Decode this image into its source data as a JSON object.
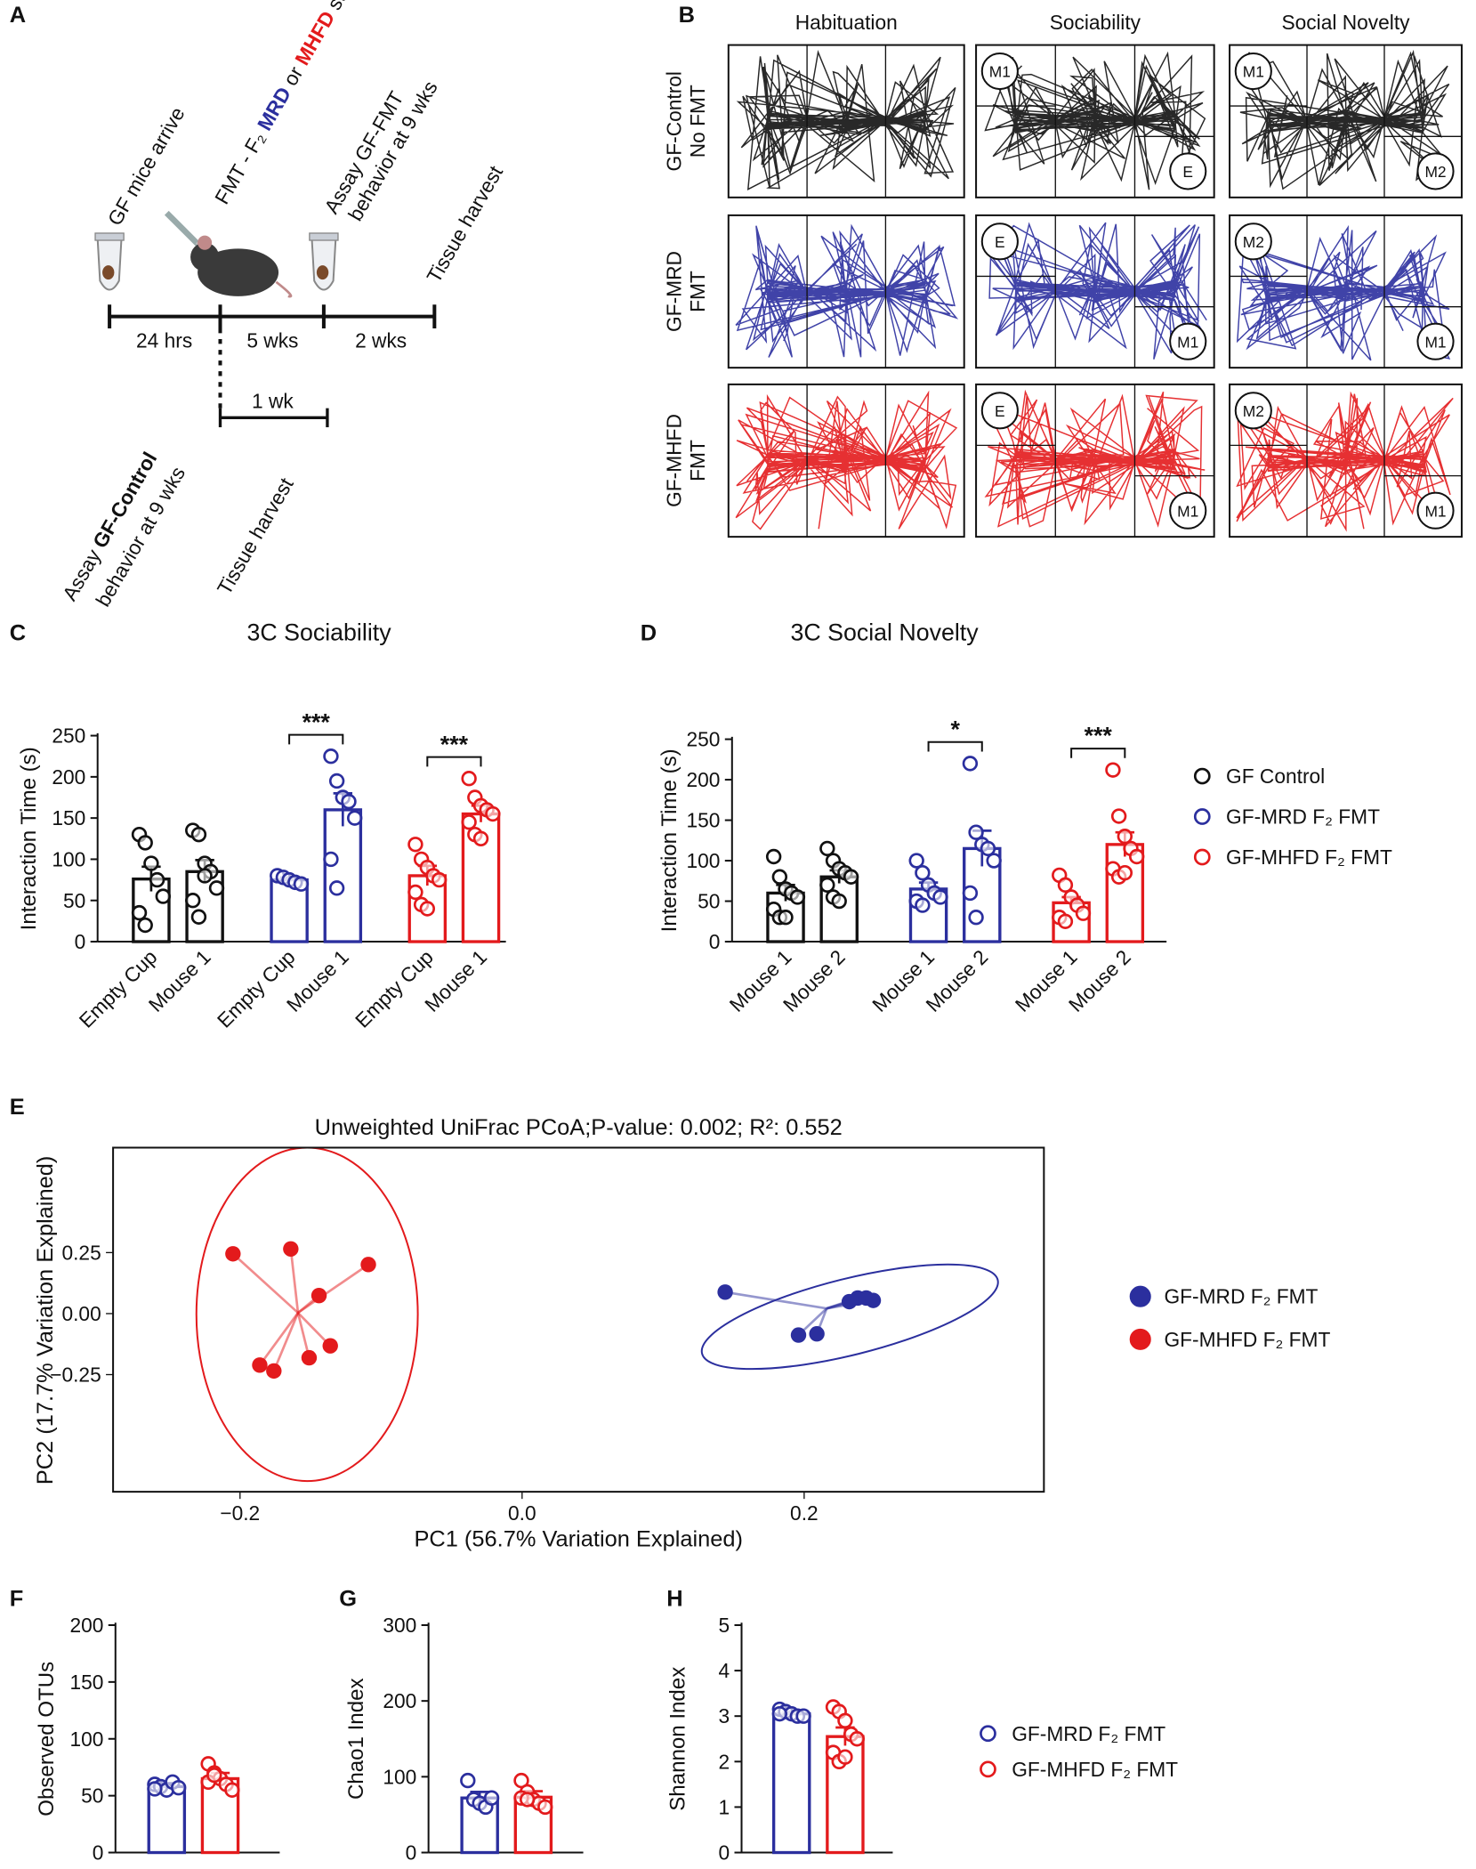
{
  "panel_labels": [
    "A",
    "B",
    "C",
    "D",
    "E",
    "F",
    "G",
    "H"
  ],
  "panel_a": {
    "arrive": "GF mice arrive",
    "fmt": [
      "FMT - F₂ ",
      "MRD",
      " or ",
      "MHFD",
      " stool"
    ],
    "assay_fmt": [
      "Assay GF-FMT",
      "behavior at 9 wks"
    ],
    "harvest_top": "Tissue harvest",
    "intervals": [
      "24 hrs",
      "5 wks",
      "2 wks"
    ],
    "sub_interval": "1 wk",
    "assay_control": [
      "Assay ",
      "GF-Control",
      "behavior at 9 wks"
    ],
    "harvest_bottom": "Tissue harvest"
  },
  "panel_b": {
    "columns": [
      "Habituation",
      "Sociability",
      "Social Novelty"
    ],
    "rows": [
      {
        "label": [
          "GF-Control",
          "No FMT"
        ],
        "color": "#111111",
        "sociability": [
          "M1",
          "E"
        ],
        "social_novelty": [
          "M1",
          "M2"
        ]
      },
      {
        "label": [
          "GF-MRD",
          "FMT"
        ],
        "color": "#2b2f9e",
        "sociability": [
          "E",
          "M1"
        ],
        "social_novelty": [
          "M2",
          "M1"
        ]
      },
      {
        "label": [
          "GF-MHFD",
          "FMT"
        ],
        "color": "#e31a1c",
        "sociability": [
          "E",
          "M1"
        ],
        "social_novelty": [
          "M2",
          "M1"
        ]
      }
    ]
  },
  "chart_data": [
    {
      "type": "bar",
      "title": "3C Sociability",
      "y_label": "Interaction Time (s)",
      "ylim": [
        0,
        250
      ],
      "yticks": [
        0,
        50,
        100,
        150,
        200,
        250
      ],
      "series": [
        {
          "color": "#111111",
          "categories": [
            "Empty Cup",
            "Mouse 1"
          ],
          "values": [
            76,
            85
          ],
          "errors": [
            15,
            14
          ],
          "points": [
            [
              130,
              120,
              95,
              75,
              55,
              35,
              20
            ],
            [
              135,
              130,
              95,
              85,
              65,
              50,
              30,
              80
            ]
          ]
        },
        {
          "color": "#2b2f9e",
          "categories": [
            "Empty Cup",
            "Mouse 1"
          ],
          "values": [
            75,
            160
          ],
          "errors": [
            3,
            20
          ],
          "significance": "***",
          "points": [
            [
              80,
              78,
              75,
              72,
              70
            ],
            [
              225,
              195,
              175,
              170,
              150,
              100,
              65
            ]
          ]
        },
        {
          "color": "#e31a1c",
          "categories": [
            "Empty Cup",
            "Mouse 1"
          ],
          "values": [
            80,
            155
          ],
          "errors": [
            12,
            10
          ],
          "significance": "***",
          "points": [
            [
              118,
              100,
              90,
              80,
              75,
              60,
              45,
              40
            ],
            [
              198,
              175,
              165,
              160,
              155,
              145,
              130,
              125
            ]
          ]
        }
      ]
    },
    {
      "type": "bar",
      "title": "3C Social Novelty",
      "y_label": "Interaction Time (s)",
      "ylim": [
        0,
        250
      ],
      "yticks": [
        0,
        50,
        100,
        150,
        200,
        250
      ],
      "series": [
        {
          "name": "GF Control",
          "color": "#111111",
          "categories": [
            "Mouse 1",
            "Mouse 2"
          ],
          "values": [
            60,
            80
          ],
          "errors": [
            10,
            8
          ],
          "points": [
            [
              105,
              80,
              65,
              60,
              55,
              40,
              30,
              30
            ],
            [
              115,
              100,
              90,
              85,
              80,
              70,
              55,
              50
            ]
          ]
        },
        {
          "name": "GF-MRD F₂ FMT",
          "color": "#2b2f9e",
          "categories": [
            "Mouse 1",
            "Mouse 2"
          ],
          "values": [
            65,
            115
          ],
          "errors": [
            8,
            22
          ],
          "significance": "*",
          "points": [
            [
              100,
              85,
              70,
              60,
              55,
              50,
              45
            ],
            [
              220,
              135,
              120,
              115,
              100,
              60,
              30
            ]
          ]
        },
        {
          "name": "GF-MHFD F₂ FMT",
          "color": "#e31a1c",
          "categories": [
            "Mouse 1",
            "Mouse 2"
          ],
          "values": [
            48,
            120
          ],
          "errors": [
            7,
            15
          ],
          "significance": "***",
          "points": [
            [
              82,
              70,
              55,
              45,
              35,
              30,
              25
            ],
            [
              212,
              155,
              130,
              115,
              105,
              90,
              80,
              85
            ]
          ]
        }
      ]
    },
    {
      "type": "scatter",
      "title": "Unweighted UniFrac PCoA;P-value: 0.002; R²: 0.552",
      "x_label": "PC1 (56.7% Variation Explained)",
      "y_label": "PC2 (17.7% Variation Explained)",
      "xlim": [
        -0.29,
        0.37
      ],
      "ylim": [
        -0.73,
        0.68
      ],
      "xticks": [
        {
          "value": -0.2,
          "label": "−0.2"
        },
        {
          "value": 0,
          "label": "0.0"
        },
        0.2
      ],
      "yticks": [
        {
          "value": -0.25,
          "label": "−0.25"
        },
        {
          "value": 0,
          "label": "0.00"
        },
        0.25
      ],
      "series": [
        {
          "name": "GF-MRD F₂ FMT",
          "color": "#2b2f9e",
          "x": [
            0.144,
            0.196,
            0.209,
            0.232,
            0.238,
            0.244,
            0.249
          ],
          "y": [
            0.088,
            -0.088,
            -0.083,
            0.049,
            0.064,
            0.064,
            0.054
          ]
        },
        {
          "name": "GF-MHFD F₂ FMT",
          "color": "#e31a1c",
          "x": [
            -0.205,
            -0.164,
            -0.109,
            -0.144,
            -0.136,
            -0.151,
            -0.186,
            -0.176
          ],
          "y": [
            0.245,
            0.265,
            0.201,
            0.074,
            -0.132,
            -0.181,
            -0.211,
            -0.235
          ]
        }
      ]
    },
    {
      "type": "bar",
      "y_label": "Observed OTUs",
      "ylim": [
        0,
        200
      ],
      "yticks": [
        0,
        50,
        100,
        150,
        200
      ],
      "series": [
        {
          "color": "#2b2f9e",
          "values": [
            58
          ],
          "errors": [
            3
          ],
          "points": [
            [
              60,
              58,
              55,
              62,
              57,
              56
            ]
          ]
        },
        {
          "color": "#e31a1c",
          "values": [
            65
          ],
          "errors": [
            5
          ],
          "points": [
            [
              78,
              70,
              65,
              60,
              55,
              62,
              68
            ]
          ]
        }
      ]
    },
    {
      "type": "bar",
      "y_label": "Chao1 Index",
      "ylim": [
        0,
        300
      ],
      "yticks": [
        0,
        100,
        200,
        300
      ],
      "series": [
        {
          "color": "#2b2f9e",
          "values": [
            72
          ],
          "errors": [
            8
          ],
          "points": [
            [
              95,
              70,
              65,
              60,
              72
            ]
          ]
        },
        {
          "color": "#e31a1c",
          "values": [
            73
          ],
          "errors": [
            8
          ],
          "points": [
            [
              95,
              80,
              70,
              65,
              60,
              72,
              70
            ]
          ]
        }
      ]
    },
    {
      "type": "bar",
      "y_label": "Shannon Index",
      "ylim": [
        0,
        5
      ],
      "yticks": [
        0,
        1,
        2,
        3,
        4,
        5
      ],
      "series": [
        {
          "name": "GF-MRD F₂ FMT",
          "color": "#2b2f9e",
          "values": [
            3.05
          ],
          "errors": [
            0.05
          ],
          "points": [
            [
              3.15,
              3.1,
              3.05,
              3.0,
              3.0,
              3.05
            ]
          ]
        },
        {
          "name": "GF-MHFD F₂ FMT",
          "color": "#e31a1c",
          "values": [
            2.55
          ],
          "errors": [
            0.2
          ],
          "points": [
            [
              3.2,
              3.1,
              2.9,
              2.6,
              2.5,
              2.2,
              2.0,
              2.1
            ]
          ]
        }
      ]
    }
  ]
}
